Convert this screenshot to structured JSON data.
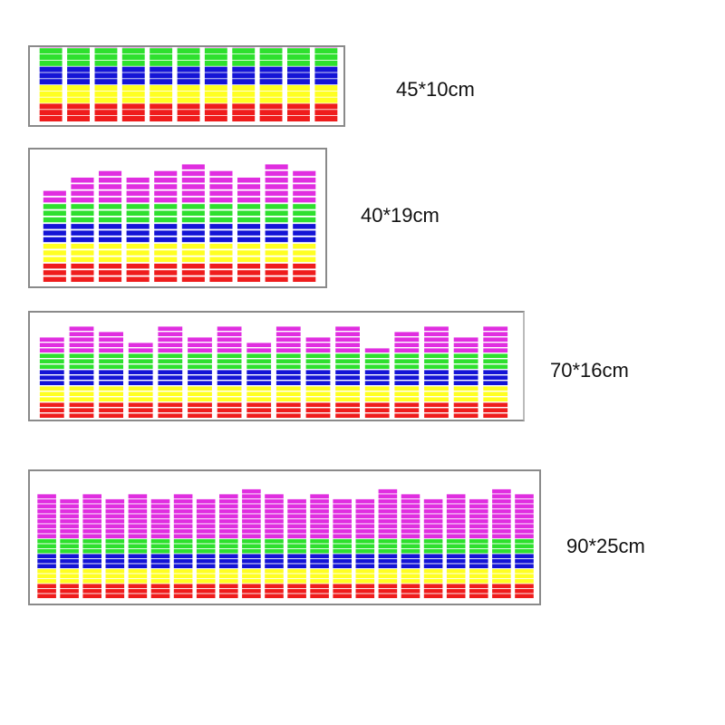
{
  "colors": {
    "red": "#ef1c1c",
    "yellow": "#ffff22",
    "blue": "#1414d6",
    "green": "#2ee02e",
    "magenta": "#e02ee0"
  },
  "products": [
    {
      "size": "45*10cm",
      "columns": 11,
      "levels": [
        15,
        14,
        16,
        14,
        16,
        14,
        15,
        16,
        14,
        16,
        15
      ]
    },
    {
      "size": "40*19cm",
      "columns": 10,
      "levels": [
        14,
        16,
        17,
        16,
        17,
        18,
        17,
        16,
        18,
        17
      ]
    },
    {
      "size": "70*16cm",
      "columns": 16,
      "levels": [
        15,
        17,
        16,
        14,
        17,
        15,
        17,
        14,
        17,
        15,
        17,
        13,
        16,
        17,
        15,
        17
      ]
    },
    {
      "size": "90*25cm",
      "columns": 22,
      "levels": [
        21,
        20,
        21,
        20,
        21,
        20,
        21,
        20,
        21,
        22,
        21,
        20,
        21,
        20,
        20,
        22,
        21,
        20,
        21,
        20,
        22,
        21
      ]
    }
  ]
}
